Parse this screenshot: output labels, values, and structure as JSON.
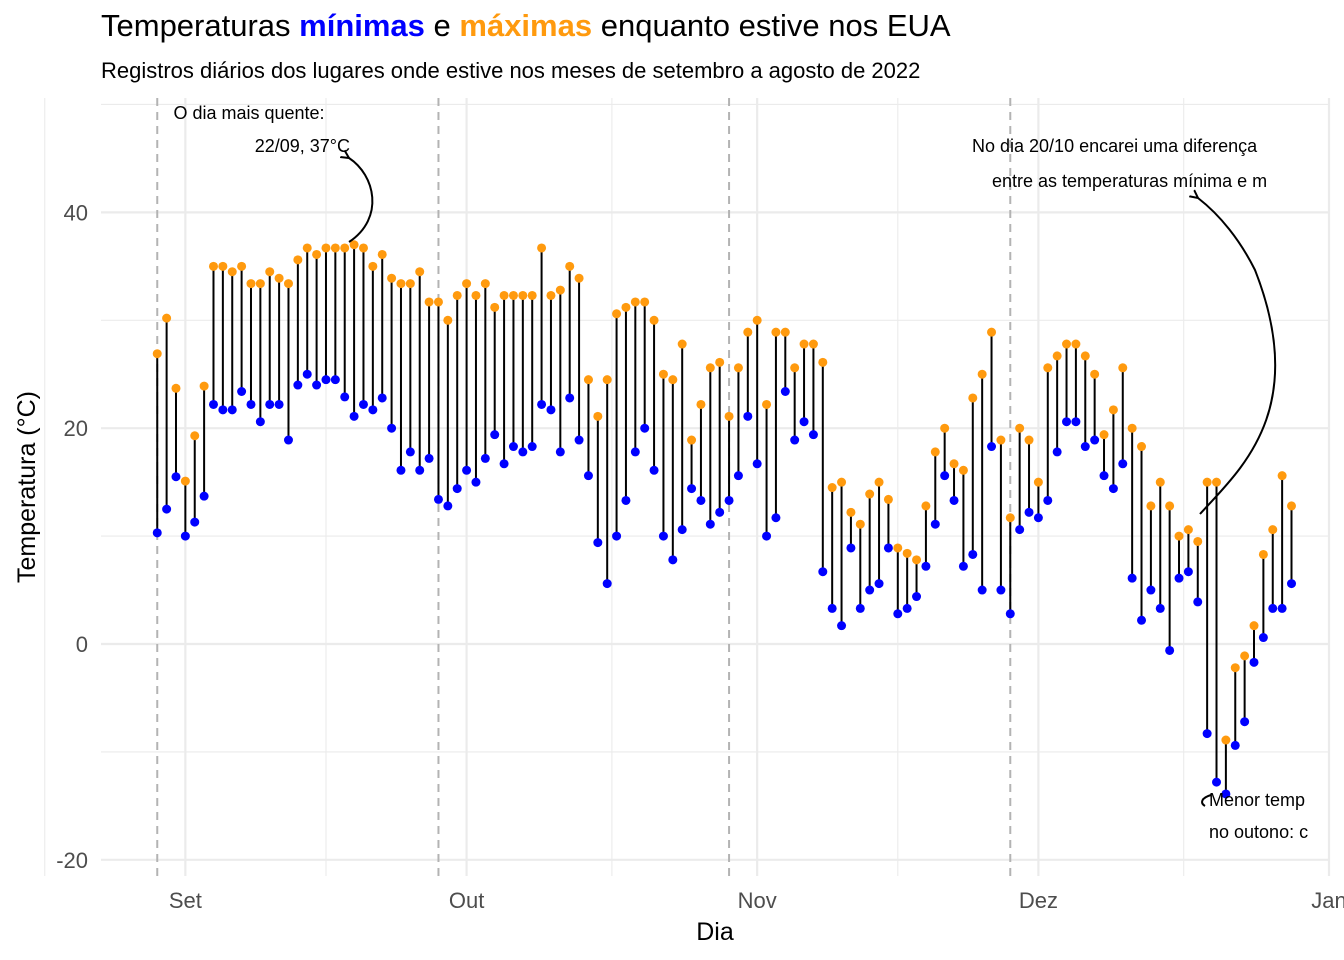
{
  "title": {
    "prefix": "Temperaturas ",
    "min_word": "mínimas",
    "middle": " e ",
    "max_word": "máximas",
    "suffix": " enquanto estive nos EUA"
  },
  "subtitle": "Registros diários dos lugares onde estive nos meses de setembro a agosto de 2022",
  "colors": {
    "min": "#0000ff",
    "max": "#ff9a0e",
    "segment": "#000000",
    "month_line": "#b3b3b3"
  },
  "chart_data": {
    "type": "scatter",
    "xlabel": "Dia",
    "ylabel": "Temperatura (°C)",
    "ylim": [
      -21.5,
      50.6
    ],
    "xlim": [
      "2022-08-23",
      "2023-01-01"
    ],
    "y_ticks": [
      -20,
      0,
      20,
      40
    ],
    "x_ticks": [
      {
        "date": "2022-09-01",
        "label": "Set"
      },
      {
        "date": "2022-10-01",
        "label": "Out"
      },
      {
        "date": "2022-11-01",
        "label": "Nov"
      },
      {
        "date": "2022-12-01",
        "label": "Dez"
      },
      {
        "date": "2023-01-01",
        "label": "Jan"
      }
    ],
    "grid": true,
    "month_boundaries": [
      "2022-08-29",
      "2022-09-28",
      "2022-10-29",
      "2022-11-28"
    ],
    "start_date": "2022-08-29",
    "series": [
      {
        "name": "mínimas",
        "values": [
          10.3,
          12.5,
          15.5,
          10.0,
          11.3,
          13.7,
          22.2,
          21.7,
          21.7,
          23.4,
          22.2,
          20.6,
          22.2,
          22.2,
          18.9,
          24.0,
          25.0,
          24.0,
          24.5,
          24.5,
          22.9,
          21.1,
          22.2,
          21.7,
          22.8,
          20.0,
          16.1,
          17.8,
          16.1,
          17.2,
          13.4,
          12.8,
          14.4,
          16.1,
          15.0,
          17.2,
          19.4,
          16.7,
          18.3,
          17.8,
          18.3,
          22.2,
          21.7,
          17.8,
          22.8,
          18.9,
          15.6,
          9.4,
          5.6,
          10.0,
          13.3,
          17.8,
          20.0,
          16.1,
          10.0,
          7.8,
          10.6,
          14.4,
          13.3,
          11.1,
          12.2,
          13.3,
          15.6,
          21.1,
          16.7,
          10.0,
          11.7,
          23.4,
          18.9,
          20.6,
          19.4,
          6.7,
          3.3,
          1.7,
          8.9,
          3.3,
          5.0,
          5.6,
          8.9,
          2.8,
          3.3,
          4.4,
          7.2,
          11.1,
          15.6,
          13.3,
          7.2,
          8.3,
          5.0,
          18.3,
          5.0,
          2.8,
          10.6,
          12.2,
          11.7,
          13.3,
          17.8,
          20.6,
          20.6,
          18.3,
          18.9,
          15.6,
          14.4,
          16.7,
          6.1,
          2.2,
          5.0,
          3.3,
          -0.6,
          6.1,
          6.7,
          3.9,
          -8.3,
          -12.8,
          -13.9,
          -9.4,
          -7.2,
          -1.7,
          0.6,
          3.3,
          3.3,
          5.6
        ]
      },
      {
        "name": "máximas",
        "values": [
          26.9,
          30.2,
          23.7,
          15.1,
          19.3,
          23.9,
          35.0,
          35.0,
          34.5,
          35.0,
          33.4,
          33.4,
          34.5,
          33.9,
          33.4,
          35.6,
          36.7,
          36.1,
          36.7,
          36.7,
          36.7,
          37.0,
          36.7,
          35.0,
          36.1,
          33.9,
          33.4,
          33.4,
          34.5,
          31.7,
          31.7,
          30.0,
          32.3,
          33.4,
          32.3,
          33.4,
          31.2,
          32.3,
          32.3,
          32.3,
          32.3,
          36.7,
          32.3,
          32.8,
          35.0,
          33.9,
          24.5,
          21.1,
          24.5,
          30.6,
          31.2,
          31.7,
          31.7,
          30.0,
          25.0,
          24.5,
          27.8,
          18.9,
          22.2,
          25.6,
          26.1,
          21.1,
          25.6,
          28.9,
          30.0,
          22.2,
          28.9,
          28.9,
          25.6,
          27.8,
          27.8,
          26.1,
          14.5,
          15.0,
          12.2,
          11.1,
          13.9,
          15.0,
          13.4,
          8.9,
          8.4,
          7.8,
          12.8,
          17.8,
          20.0,
          16.7,
          16.1,
          22.8,
          25.0,
          28.9,
          18.9,
          11.7,
          20.0,
          18.9,
          15.0,
          25.6,
          26.7,
          27.8,
          27.8,
          26.7,
          25.0,
          19.4,
          21.7,
          25.6,
          20.0,
          18.3,
          12.8,
          15.0,
          12.8,
          10.0,
          10.6,
          9.5,
          15.0,
          15.0,
          -8.9,
          -2.2,
          -1.1,
          1.7,
          8.3,
          10.6,
          15.6,
          12.8
        ]
      }
    ],
    "annotations": [
      {
        "id": "hottest",
        "lines": [
          "O dia mais quente:",
          "22/09, 37°C"
        ]
      },
      {
        "id": "largest-diff",
        "lines": [
          "No dia 20/10 encarei uma diferença",
          "entre as temperaturas mínima e m"
        ]
      },
      {
        "id": "coldest",
        "lines": [
          "Menor temp",
          "no outono: c"
        ]
      }
    ]
  }
}
